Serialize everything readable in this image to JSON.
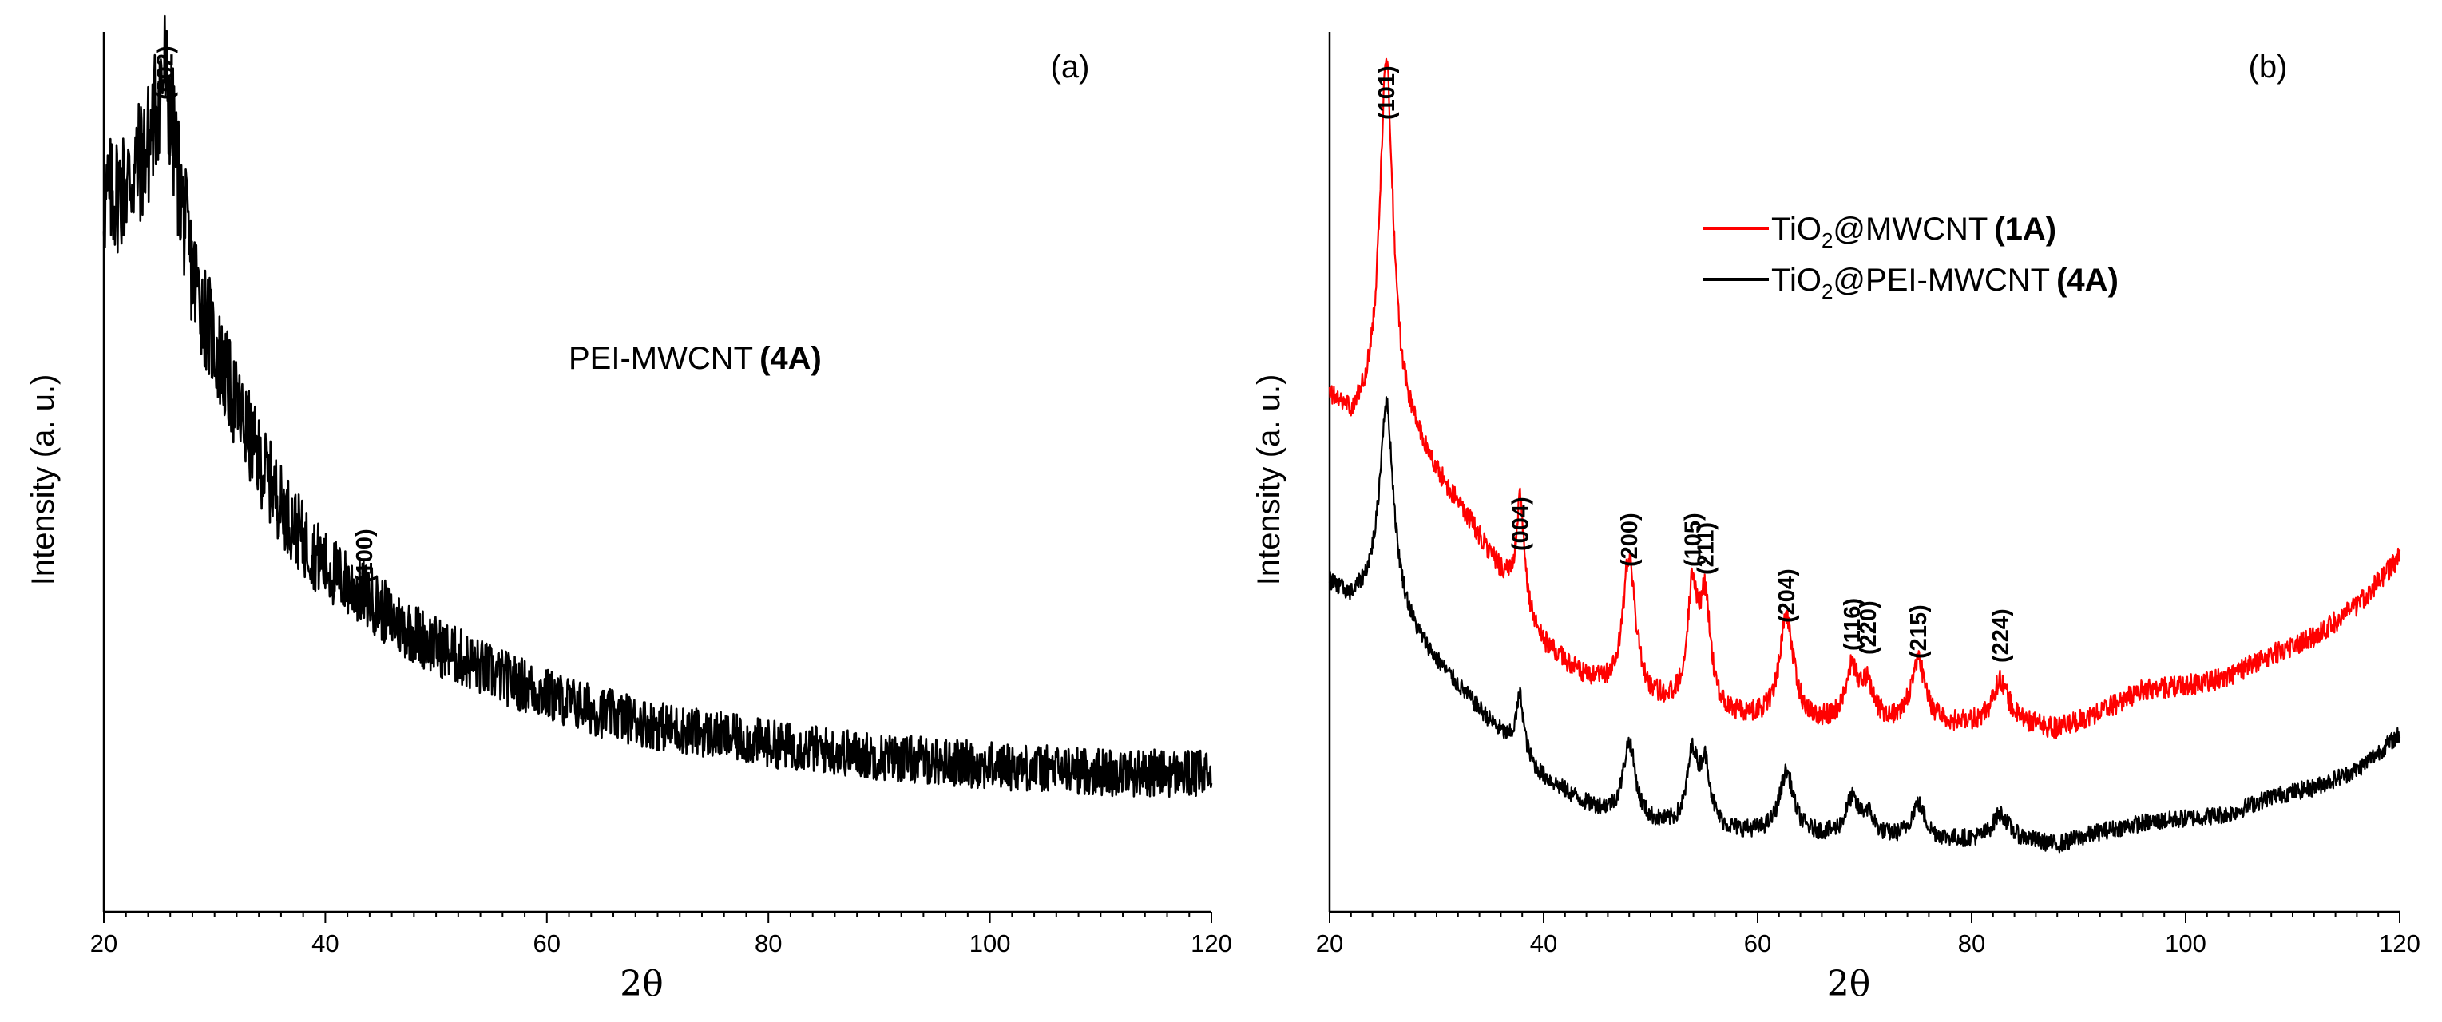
{
  "chart_data": [
    {
      "panel": "(a)",
      "type": "line",
      "xlabel": "2θ",
      "ylabel": "Intensity (a. u.)",
      "xlim": [
        20,
        120
      ],
      "x_ticks": [
        "20",
        "40",
        "60",
        "80",
        "100",
        "120"
      ],
      "sample_label": {
        "name": "PEI-MWCNT",
        "code": "(4A)"
      },
      "peaks": [
        {
          "label": "(002)",
          "x": 25.5
        },
        {
          "label": "(100)",
          "x": 43.5
        }
      ],
      "series": [
        {
          "name": "PEI-MWCNT (4A)",
          "color": "#000000",
          "noise": 0.045,
          "anchors": [
            [
              20,
              0.8
            ],
            [
              22,
              0.82
            ],
            [
              24,
              0.86
            ],
            [
              25.5,
              0.93
            ],
            [
              27,
              0.8
            ],
            [
              28,
              0.72
            ],
            [
              30,
              0.64
            ],
            [
              32,
              0.57
            ],
            [
              34,
              0.51
            ],
            [
              36,
              0.46
            ],
            [
              38,
              0.42
            ],
            [
              40,
              0.39
            ],
            [
              42,
              0.37
            ],
            [
              44,
              0.355
            ],
            [
              46,
              0.33
            ],
            [
              50,
              0.3
            ],
            [
              55,
              0.27
            ],
            [
              60,
              0.245
            ],
            [
              65,
              0.225
            ],
            [
              70,
              0.21
            ],
            [
              75,
              0.2
            ],
            [
              80,
              0.19
            ],
            [
              90,
              0.175
            ],
            [
              100,
              0.165
            ],
            [
              110,
              0.158
            ],
            [
              120,
              0.155
            ]
          ]
        }
      ]
    },
    {
      "panel": "(b)",
      "type": "line",
      "xlabel": "2θ",
      "ylabel": "Intensity (a. u.)",
      "xlim": [
        20,
        120
      ],
      "x_ticks": [
        "20",
        "40",
        "60",
        "80",
        "100",
        "120"
      ],
      "peaks": [
        {
          "label": "(101)",
          "x": 25.3
        },
        {
          "label": "(004)",
          "x": 37.8
        },
        {
          "label": "(200)",
          "x": 48.0
        },
        {
          "label": "(105)",
          "x": 53.9
        },
        {
          "label": "(211)",
          "x": 55.1
        },
        {
          "label": "(204)",
          "x": 62.7
        },
        {
          "label": "(116)",
          "x": 68.8
        },
        {
          "label": "(220)",
          "x": 70.3
        },
        {
          "label": "(215)",
          "x": 75.0
        },
        {
          "label": "(224)",
          "x": 82.7
        }
      ],
      "legend": {
        "placement": "top-right",
        "entries": [
          {
            "prefix": "TiO",
            "sub": "2",
            "mid": "@MWCNT",
            "code": "(1A)",
            "color": "#ff0000"
          },
          {
            "prefix": "TiO",
            "sub": "2",
            "mid": "@PEI-MWCNT",
            "code": "(4A)",
            "color": "#000000"
          }
        ]
      },
      "series": [
        {
          "name": "TiO2@MWCNT (1A)",
          "color": "#ff0000",
          "noise": 0.012,
          "baseline": [
            [
              20,
              0.58
            ],
            [
              22,
              0.55
            ],
            [
              24,
              0.56
            ],
            [
              26,
              0.56
            ],
            [
              28,
              0.53
            ],
            [
              30,
              0.49
            ],
            [
              33,
              0.44
            ],
            [
              36,
              0.38
            ],
            [
              38,
              0.34
            ],
            [
              40,
              0.3
            ],
            [
              44,
              0.26
            ],
            [
              48,
              0.24
            ],
            [
              55,
              0.22
            ],
            [
              65,
              0.21
            ],
            [
              75,
              0.21
            ],
            [
              85,
              0.21
            ],
            [
              88,
              0.205
            ],
            [
              92,
              0.225
            ],
            [
              96,
              0.25
            ],
            [
              100,
              0.255
            ],
            [
              104,
              0.265
            ],
            [
              108,
              0.29
            ],
            [
              112,
              0.31
            ],
            [
              116,
              0.345
            ],
            [
              120,
              0.4
            ]
          ],
          "peak_heights": [
            [
              25.3,
              0.4,
              0.75
            ],
            [
              37.8,
              0.12,
              0.45
            ],
            [
              48.0,
              0.16,
              0.7
            ],
            [
              53.9,
              0.13,
              0.6
            ],
            [
              55.1,
              0.12,
              0.6
            ],
            [
              62.7,
              0.12,
              0.8
            ],
            [
              68.8,
              0.06,
              0.7
            ],
            [
              70.3,
              0.04,
              0.7
            ],
            [
              75.0,
              0.07,
              0.8
            ],
            [
              82.7,
              0.05,
              0.9
            ]
          ]
        },
        {
          "name": "TiO2@PEI-MWCNT (4A)",
          "color": "#000000",
          "noise": 0.01,
          "baseline": [
            [
              20,
              0.37
            ],
            [
              22,
              0.35
            ],
            [
              24,
              0.36
            ],
            [
              26,
              0.35
            ],
            [
              28,
              0.31
            ],
            [
              30,
              0.28
            ],
            [
              33,
              0.24
            ],
            [
              36,
              0.2
            ],
            [
              38,
              0.17
            ],
            [
              40,
              0.15
            ],
            [
              44,
              0.12
            ],
            [
              48,
              0.1
            ],
            [
              55,
              0.09
            ],
            [
              65,
              0.085
            ],
            [
              75,
              0.08
            ],
            [
              85,
              0.08
            ],
            [
              88,
              0.075
            ],
            [
              92,
              0.09
            ],
            [
              96,
              0.1
            ],
            [
              100,
              0.105
            ],
            [
              104,
              0.11
            ],
            [
              108,
              0.13
            ],
            [
              112,
              0.14
            ],
            [
              116,
              0.16
            ],
            [
              120,
              0.2
            ]
          ],
          "peak_heights": [
            [
              25.3,
              0.22,
              0.75
            ],
            [
              37.8,
              0.07,
              0.45
            ],
            [
              48.0,
              0.09,
              0.7
            ],
            [
              53.9,
              0.08,
              0.6
            ],
            [
              55.1,
              0.07,
              0.6
            ],
            [
              62.7,
              0.07,
              0.8
            ],
            [
              68.8,
              0.04,
              0.7
            ],
            [
              70.3,
              0.025,
              0.7
            ],
            [
              75.0,
              0.04,
              0.8
            ],
            [
              82.7,
              0.03,
              0.9
            ]
          ]
        }
      ]
    }
  ]
}
